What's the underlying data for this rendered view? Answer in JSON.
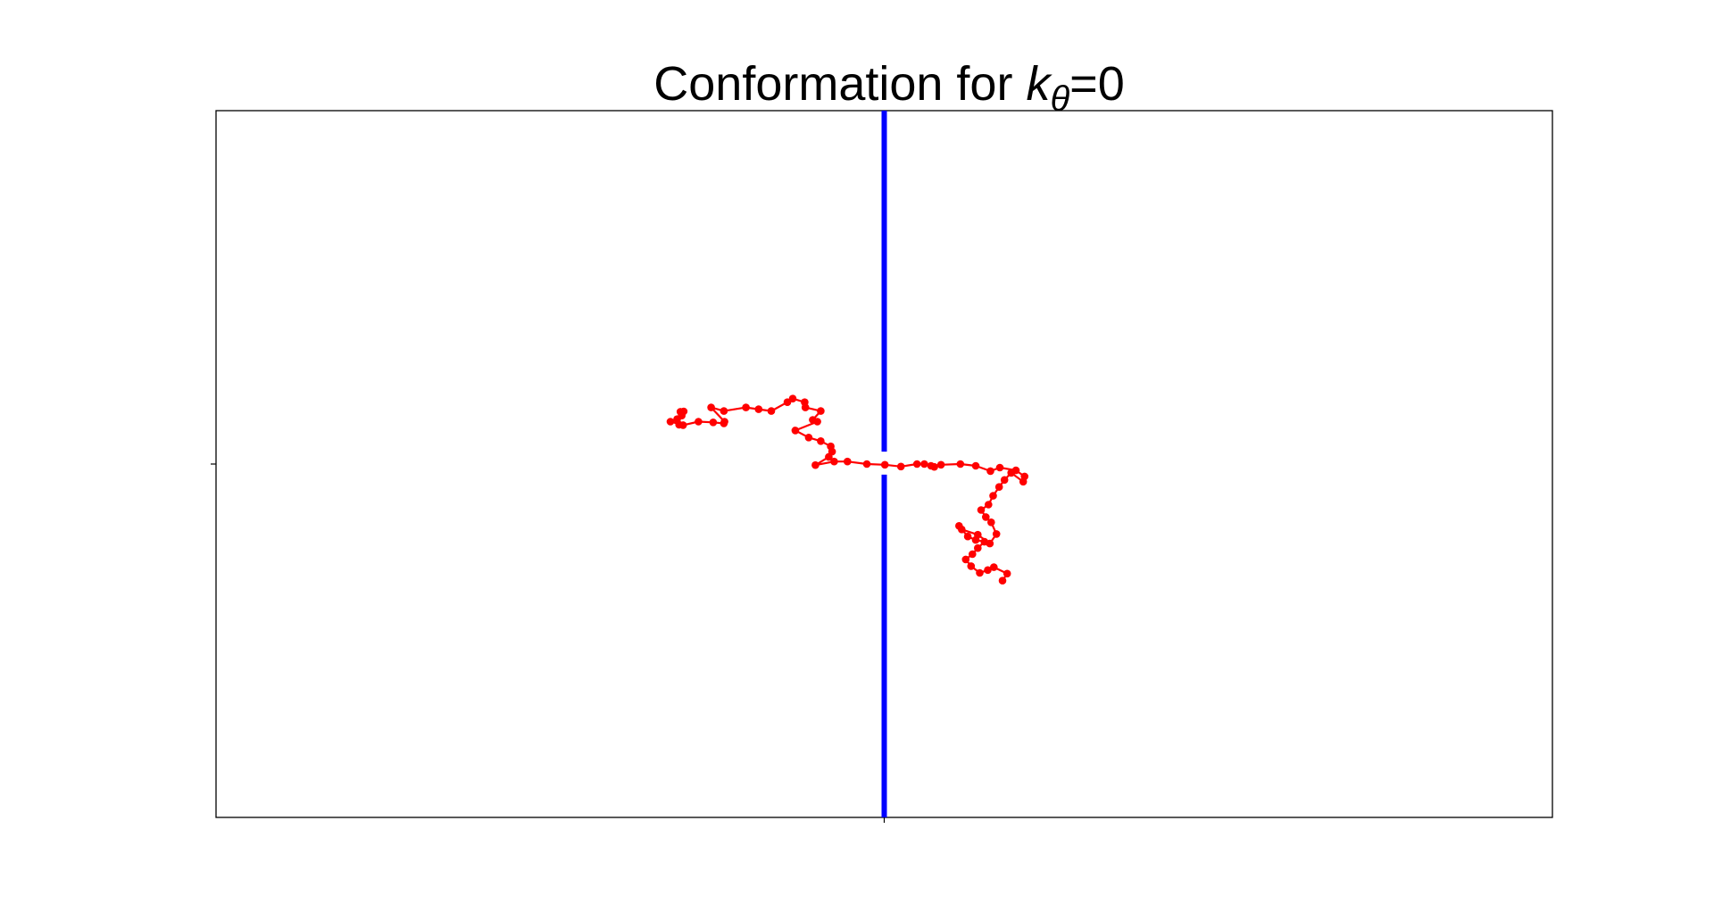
{
  "chart_data": {
    "type": "line",
    "title": {
      "prefix": "Conformation for ",
      "symbol": "k",
      "subscript": "θ",
      "suffix": "=0"
    },
    "xlim": [
      -1,
      1
    ],
    "ylim": [
      -1,
      1
    ],
    "xticks": [
      0
    ],
    "yticks": [
      0
    ],
    "tick_labels_shown": false,
    "grid": false,
    "wall": {
      "x": 0,
      "color": "#0000ff",
      "pore_gap": [
        -0.03,
        0.035
      ],
      "style": "thick vertical line"
    },
    "series": [
      {
        "color": "#ff0000",
        "marker": "circle",
        "x": [
          0.177,
          0.184,
          0.164,
          0.155,
          0.143,
          0.13,
          0.122,
          0.132,
          0.14,
          0.15,
          0.137,
          0.125,
          0.112,
          0.116,
          0.14,
          0.158,
          0.168,
          0.16,
          0.152,
          0.145,
          0.156,
          0.163,
          0.172,
          0.18,
          0.19,
          0.208,
          0.21,
          0.197,
          0.173,
          0.159,
          0.137,
          0.114,
          0.085,
          0.075,
          0.07,
          0.06,
          0.049,
          0.025,
          0.001,
          -0.026,
          -0.055,
          -0.075,
          -0.103,
          -0.083,
          -0.078,
          -0.08,
          -0.095,
          -0.113,
          -0.133,
          -0.1,
          -0.107,
          -0.095,
          -0.118,
          -0.119,
          -0.137,
          -0.145,
          -0.169,
          -0.188,
          -0.207,
          -0.24,
          -0.259,
          -0.239,
          -0.24,
          -0.256,
          -0.278,
          -0.301,
          -0.32,
          -0.31,
          -0.307,
          -0.305,
          -0.303,
          -0.3
        ],
        "y": [
          -0.33,
          -0.31,
          -0.292,
          -0.3,
          -0.308,
          -0.289,
          -0.27,
          -0.255,
          -0.238,
          -0.22,
          -0.215,
          -0.205,
          -0.175,
          -0.185,
          -0.2,
          -0.225,
          -0.198,
          -0.165,
          -0.15,
          -0.13,
          -0.115,
          -0.09,
          -0.065,
          -0.045,
          -0.025,
          -0.05,
          -0.035,
          -0.018,
          -0.01,
          -0.02,
          -0.005,
          0.0,
          -0.002,
          -0.008,
          -0.005,
          0.0,
          0.0,
          -0.007,
          -0.002,
          0.0,
          0.007,
          0.007,
          -0.003,
          0.02,
          0.035,
          0.05,
          0.065,
          0.075,
          0.095,
          0.12,
          0.125,
          0.15,
          0.16,
          0.175,
          0.185,
          0.175,
          0.15,
          0.155,
          0.16,
          0.15,
          0.16,
          0.12,
          0.115,
          0.118,
          0.12,
          0.11,
          0.12,
          0.127,
          0.111,
          0.148,
          0.137,
          0.149
        ]
      }
    ]
  }
}
